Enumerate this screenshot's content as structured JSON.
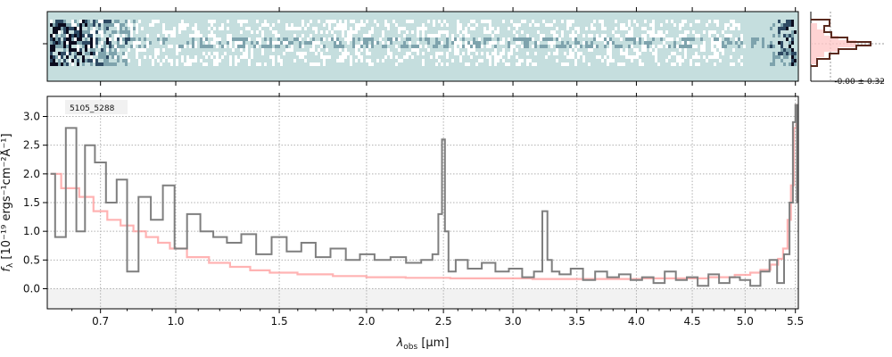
{
  "chart_data": [
    {
      "type": "line",
      "panel": "spectrum",
      "title": "",
      "annotation": "5105_5288",
      "xlabel_main": "λ",
      "xlabel_sub": "obs",
      "xlabel_unit": " [μm]",
      "ylabel_main": "f",
      "ylabel_sub": "λ",
      "ylabel_unit": " [10⁻¹⁹ ergs⁻¹cm⁻²Å⁻¹]",
      "xscale": "sqrt",
      "xlim": [
        0.52,
        5.53
      ],
      "ylim": [
        -0.35,
        3.35
      ],
      "grid": true,
      "x_tick_labels": [
        "0.7",
        "1.0",
        "1.5",
        "2.0",
        "2.5",
        "3.0",
        "3.5",
        "4.0",
        "4.5",
        "5.0",
        "5.5"
      ],
      "x_ticks": [
        0.7,
        1.0,
        1.5,
        2.0,
        2.5,
        3.0,
        3.5,
        4.0,
        4.5,
        5.0,
        5.5
      ],
      "y_tick_labels": [
        "0.0",
        "0.5",
        "1.0",
        "1.5",
        "2.0",
        "2.5",
        "3.0"
      ],
      "y_ticks": [
        0.0,
        0.5,
        1.0,
        1.5,
        2.0,
        2.5,
        3.0
      ],
      "series": [
        {
          "color": "#7f7f7f",
          "x": [
            0.53,
            0.56,
            0.6,
            0.63,
            0.66,
            0.7,
            0.74,
            0.78,
            0.82,
            0.87,
            0.92,
            0.97,
            1.02,
            1.08,
            1.14,
            1.2,
            1.27,
            1.34,
            1.42,
            1.5,
            1.58,
            1.66,
            1.74,
            1.83,
            1.92,
            2.0,
            2.1,
            2.2,
            2.3,
            2.4,
            2.45,
            2.48,
            2.5,
            2.52,
            2.55,
            2.62,
            2.72,
            2.82,
            2.92,
            3.02,
            3.12,
            3.2,
            3.25,
            3.28,
            3.32,
            3.4,
            3.5,
            3.6,
            3.7,
            3.8,
            3.9,
            4.0,
            4.1,
            4.2,
            4.3,
            4.4,
            4.5,
            4.6,
            4.7,
            4.8,
            4.9,
            5.0,
            5.1,
            5.2,
            5.28,
            5.35,
            5.42,
            5.46,
            5.49,
            5.51,
            5.52
          ],
          "y": [
            2.0,
            0.9,
            2.8,
            1.0,
            2.5,
            2.2,
            1.5,
            1.9,
            0.3,
            1.6,
            1.2,
            1.8,
            0.7,
            1.3,
            1.0,
            0.9,
            0.8,
            0.95,
            0.6,
            0.9,
            0.65,
            0.8,
            0.55,
            0.7,
            0.5,
            0.6,
            0.5,
            0.55,
            0.45,
            0.5,
            0.6,
            1.3,
            2.6,
            1.0,
            0.3,
            0.5,
            0.35,
            0.45,
            0.3,
            0.35,
            0.2,
            0.3,
            1.35,
            0.5,
            0.3,
            0.25,
            0.35,
            0.15,
            0.3,
            0.2,
            0.25,
            0.15,
            0.2,
            0.1,
            0.3,
            0.15,
            0.2,
            0.05,
            0.25,
            0.1,
            0.2,
            0.15,
            0.05,
            0.3,
            0.5,
            0.1,
            0.6,
            1.5,
            2.9,
            3.2,
            1.5
          ]
        },
        {
          "color": "#ff9999",
          "x": [
            0.53,
            0.6,
            0.65,
            0.7,
            0.75,
            0.8,
            0.85,
            0.9,
            0.95,
            1.0,
            1.1,
            1.2,
            1.3,
            1.4,
            1.5,
            1.7,
            1.9,
            2.1,
            2.4,
            2.7,
            3.0,
            3.3,
            3.6,
            3.9,
            4.2,
            4.5,
            4.8,
            5.0,
            5.1,
            5.2,
            5.3,
            5.35,
            5.4,
            5.44,
            5.47,
            5.5,
            5.52
          ],
          "y": [
            2.0,
            1.75,
            1.6,
            1.35,
            1.2,
            1.1,
            1.0,
            0.9,
            0.8,
            0.7,
            0.55,
            0.45,
            0.38,
            0.32,
            0.28,
            0.25,
            0.22,
            0.2,
            0.19,
            0.18,
            0.18,
            0.17,
            0.17,
            0.17,
            0.18,
            0.18,
            0.2,
            0.24,
            0.28,
            0.33,
            0.42,
            0.52,
            0.7,
            1.2,
            1.8,
            2.8,
            3.2
          ]
        }
      ]
    },
    {
      "type": "heatmap",
      "panel": "2d-spectrum",
      "colormap_colors": [
        "#ffffff",
        "#c5dede",
        "#7ea3ad",
        "#2e4a63",
        "#0b0b1e"
      ],
      "background_color": "#c5dede"
    },
    {
      "type": "line",
      "panel": "histogram",
      "stats_label": "-0.00 ± 0.32",
      "colors": [
        "#5a2a1f",
        "#ffc8c8"
      ]
    }
  ]
}
